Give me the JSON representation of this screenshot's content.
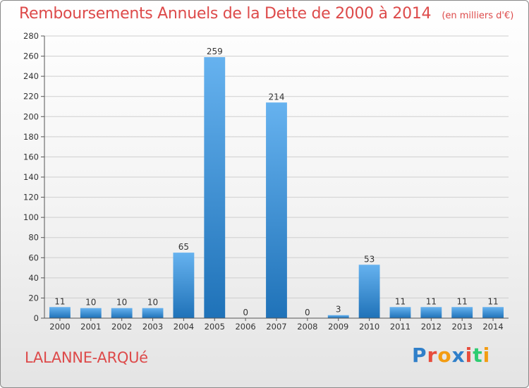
{
  "title": "Remboursements Annuels de la Dette de 2000 à 2014",
  "unit_note": "(en milliers d'€)",
  "town": "LALANNE-ARQUé",
  "logo": {
    "text": "Proxiti",
    "letter_colors": [
      "#2f7fc9",
      "#e74c3c",
      "#f39c12",
      "#2f7fc9",
      "#e74c3c",
      "#2ecc71",
      "#f39c12"
    ]
  },
  "colors": {
    "title": "#dd4a4a",
    "bar_top": "#66b2ef",
    "bar_bottom": "#1f72b8"
  },
  "chart_data": {
    "type": "bar",
    "title": "Remboursements Annuels de la Dette de 2000 à 2014",
    "xlabel": "",
    "ylabel": "",
    "categories": [
      "2000",
      "2001",
      "2002",
      "2003",
      "2004",
      "2005",
      "2006",
      "2007",
      "2008",
      "2009",
      "2010",
      "2011",
      "2012",
      "2013",
      "2014"
    ],
    "values": [
      11,
      10,
      10,
      10,
      65,
      259,
      0,
      214,
      0,
      3,
      53,
      11,
      11,
      11,
      11
    ],
    "ylim": [
      0,
      280
    ],
    "yticks": [
      0,
      20,
      40,
      60,
      80,
      100,
      120,
      140,
      160,
      180,
      200,
      220,
      240,
      260,
      280
    ],
    "grid": true,
    "legend": "none"
  }
}
